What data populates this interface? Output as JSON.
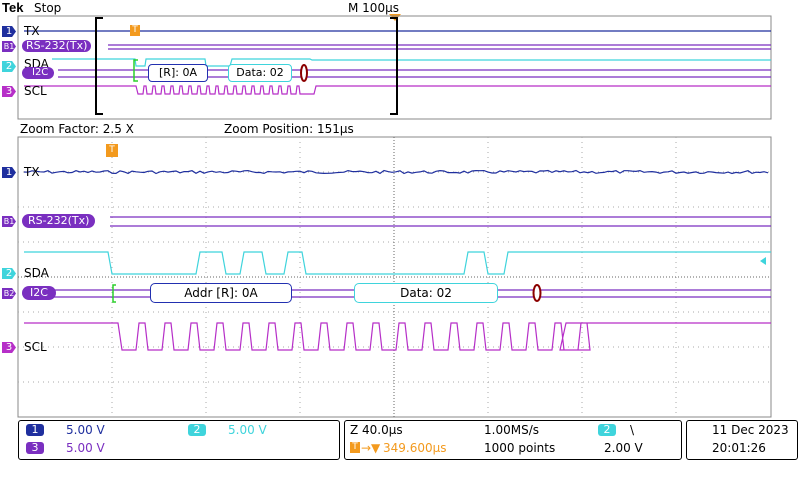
{
  "header": {
    "brand": "Tek",
    "status": "Stop",
    "timebase": "M 100µs"
  },
  "top_channels": [
    {
      "marker": "1",
      "label": "TX"
    },
    {
      "marker": "B1",
      "label": "RS-232(Tx)"
    },
    {
      "marker": "2",
      "label": "SDA"
    },
    {
      "marker": "B2",
      "label": "I2C"
    },
    {
      "marker": "3",
      "label": "SCL"
    }
  ],
  "top_packets": {
    "read": "[R]: 0A",
    "data": "Data: 02"
  },
  "trigger_marker": "T",
  "zoom": {
    "factor": "Zoom Factor: 2.5 X",
    "position": "Zoom Position: 151µs"
  },
  "zoom_channels": [
    {
      "marker": "1",
      "label": "TX"
    },
    {
      "marker": "B1",
      "label": "RS-232(Tx)"
    },
    {
      "marker": "2",
      "label": "SDA"
    },
    {
      "marker": "B2",
      "label": "I2C"
    },
    {
      "marker": "3",
      "label": "SCL"
    }
  ],
  "zoom_packets": {
    "addr": "Addr [R]: 0A",
    "data": "Data: 02"
  },
  "bottom": {
    "ch1": {
      "num": "1",
      "volts": "5.00 V"
    },
    "ch2": {
      "num": "2",
      "volts": "5.00 V"
    },
    "ch3": {
      "num": "3",
      "volts": "5.00 V"
    },
    "zoom_time": "Z 40.0µs",
    "trigger_pos": "349.600µs",
    "sample_rate": "1.00MS/s",
    "record": "1000 points",
    "trig_channel": "2",
    "trig_slope": "\\",
    "trig_level": "2.00 V",
    "date": "11 Dec  2023",
    "time": "20:01:26"
  },
  "colors": {
    "ch1": "#1f2f9e",
    "ch2": "#3fd4dc",
    "ch3": "#b62fc8",
    "bus": "#7a2fc0",
    "trigger": "#f39a1e"
  }
}
